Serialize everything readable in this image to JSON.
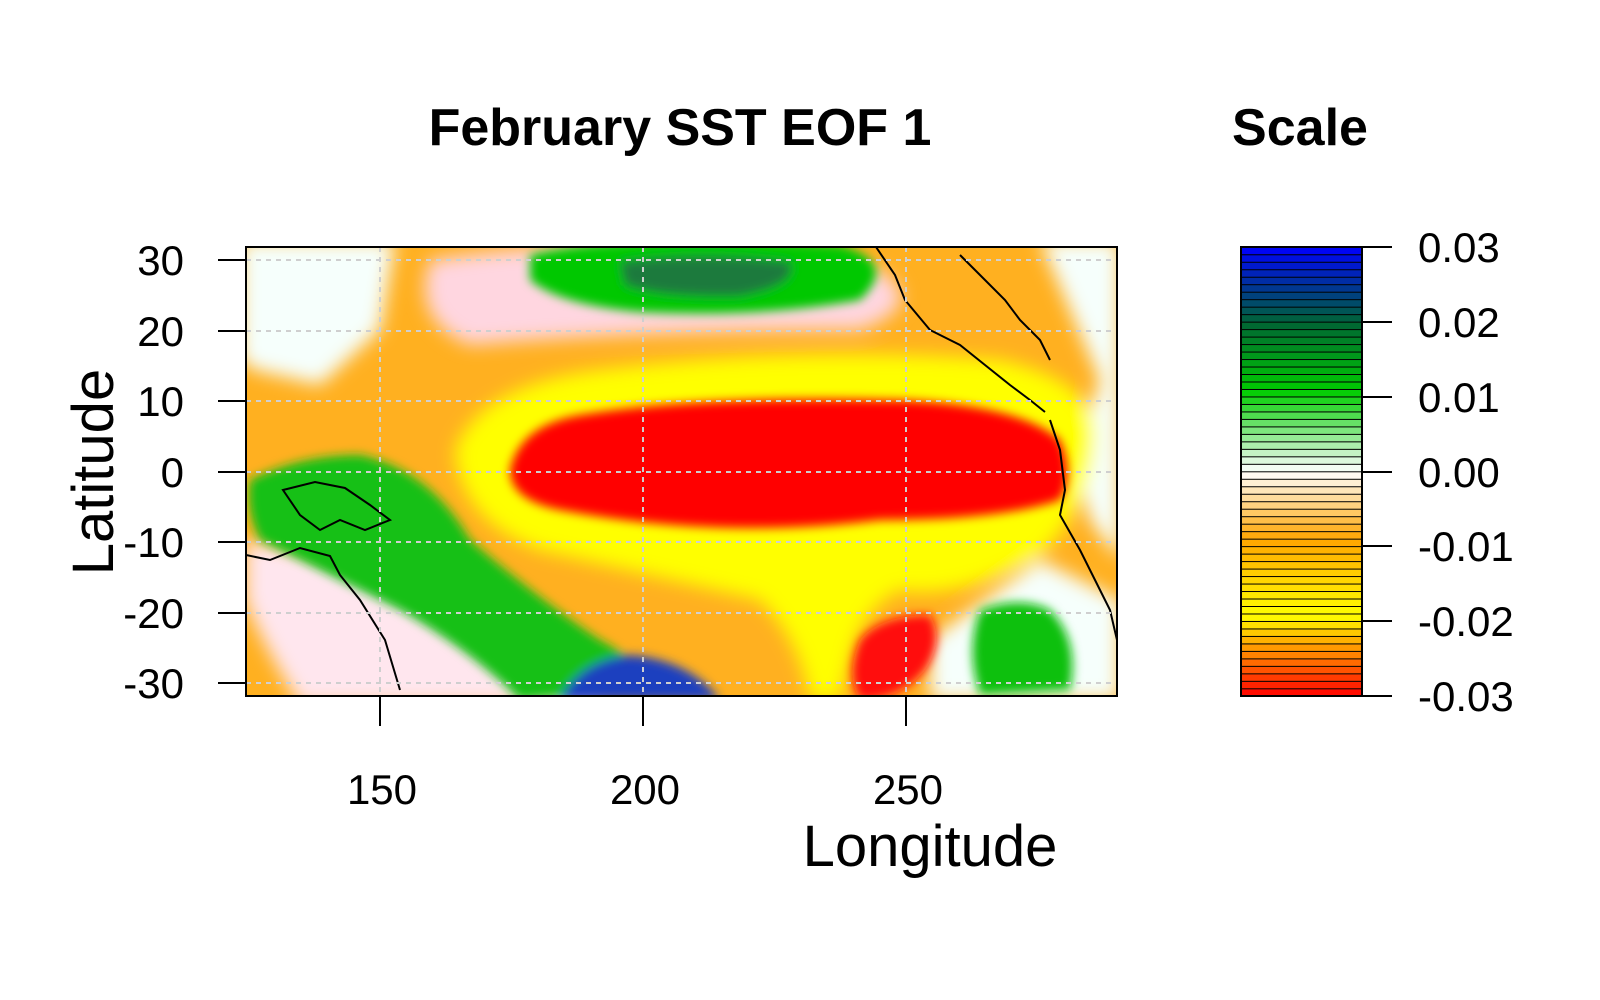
{
  "chart_data": [
    {
      "type": "heatmap",
      "title": "February SST EOF 1",
      "xlabel": "Longitude",
      "ylabel": "Latitude",
      "xlim": [
        124,
        293
      ],
      "ylim": [
        -32,
        32
      ],
      "x_ticks": [
        "150",
        "200",
        "250"
      ],
      "x_tick_values": [
        150,
        200,
        250
      ],
      "y_ticks": [
        "30",
        "20",
        "10",
        "0",
        "-10",
        "-20",
        "-30"
      ],
      "y_tick_values": [
        30,
        20,
        10,
        0,
        -10,
        -20,
        -30
      ],
      "grid": true,
      "field_features": [
        {
          "name": "central-equatorial-maximum",
          "lon": 223,
          "lat": -1,
          "value": -0.03
        },
        {
          "name": "west-pacific-dipole-lobe",
          "lon": 150,
          "lat": -8,
          "value": 0.01
        },
        {
          "name": "north-pacific-lobe",
          "lon": 212,
          "lat": 26,
          "value": 0.015
        },
        {
          "name": "south-pacific-minimum",
          "lon": 197,
          "lat": -30,
          "value": 0.025
        },
        {
          "name": "south-east-pacific-lobe",
          "lon": 273,
          "lat": -25,
          "value": 0.01
        },
        {
          "name": "south-east-warm-lobe",
          "lon": 246,
          "lat": -26,
          "value": -0.03
        }
      ]
    },
    {
      "type": "colorbar",
      "title": "Scale",
      "range": [
        -0.03,
        0.03
      ],
      "tick_labels": [
        "0.03",
        "0.02",
        "0.01",
        "0.00",
        "-0.01",
        "-0.02",
        "-0.03"
      ],
      "tick_values": [
        0.03,
        0.02,
        0.01,
        0.0,
        -0.01,
        -0.02,
        -0.03
      ],
      "colors": {
        "low": "#ff0000",
        "mid_low": "#ffff00",
        "mid": "#ffa500",
        "zero": "#ffffff",
        "mid_high": "#00cc00",
        "high_dark": "#006633",
        "high": "#0000ff"
      }
    }
  ]
}
